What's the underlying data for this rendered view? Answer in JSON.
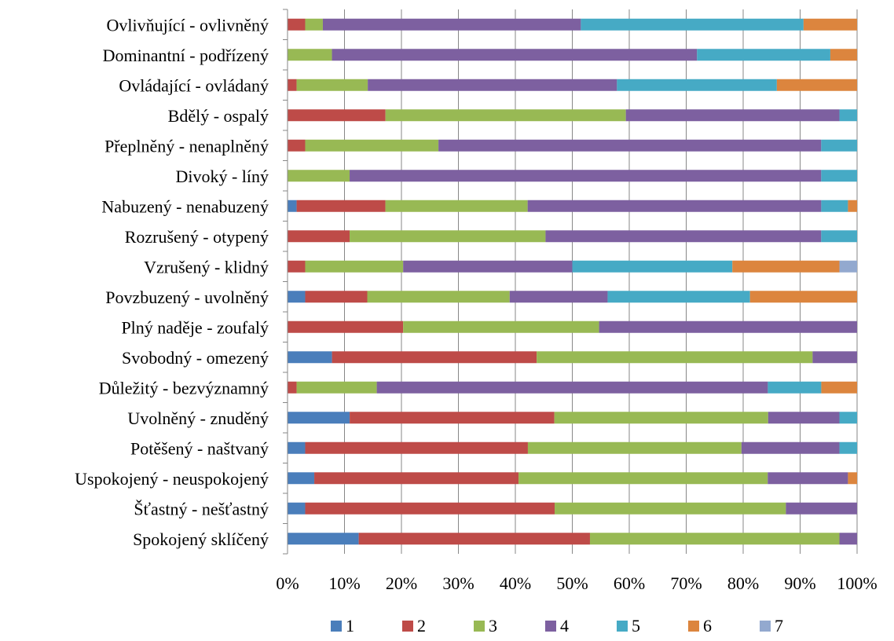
{
  "chart_data": {
    "type": "bar",
    "orientation": "horizontal",
    "stacked": "percent",
    "xlim": [
      0,
      100
    ],
    "x_ticks": [
      "0%",
      "10%",
      "20%",
      "30%",
      "40%",
      "50%",
      "60%",
      "70%",
      "80%",
      "90%",
      "100%"
    ],
    "grid": true,
    "legend_position": "bottom",
    "categories": [
      "Ovlivňující - ovlivněný",
      "Dominantní - podřízený",
      "Ovládající - ovládaný",
      "Bdělý - ospalý",
      "Přeplněný - nenaplněný",
      "Divoký - líný",
      "Nabuzený - nenabuzený",
      "Rozrušený - otypený",
      "Vzrušený - klidný",
      "Povzbuzený - uvolněný",
      "Plný naděje - zoufalý",
      "Svobodný - omezený",
      "Důležitý - bezvýznamný",
      "Uvolněný - znuděný",
      "Potěšený - naštvaný",
      "Uspokojený - neuspokojený",
      "Šťastný - nešťastný",
      "Spokojený sklíčený"
    ],
    "series": [
      {
        "name": "1",
        "color": "#4a7ebb",
        "values": [
          0,
          0,
          0,
          0,
          0,
          0,
          1.6,
          0,
          0,
          3.1,
          0,
          7.8,
          0,
          10.9,
          3.1,
          4.7,
          3.1,
          12.5
        ]
      },
      {
        "name": "2",
        "color": "#be4b48",
        "values": [
          3.1,
          0,
          1.6,
          17.2,
          3.1,
          0,
          15.6,
          10.9,
          3.1,
          10.9,
          20.3,
          35.9,
          1.6,
          35.9,
          39.1,
          35.9,
          43.8,
          40.6
        ]
      },
      {
        "name": "3",
        "color": "#98b954",
        "values": [
          3.1,
          7.8,
          12.5,
          42.2,
          23.4,
          10.9,
          25.0,
          34.4,
          17.2,
          25.0,
          34.4,
          48.4,
          14.1,
          37.5,
          37.5,
          43.8,
          40.6,
          43.8
        ]
      },
      {
        "name": "4",
        "color": "#7d60a0",
        "values": [
          45.3,
          64.1,
          43.8,
          37.5,
          67.2,
          82.8,
          51.6,
          48.4,
          29.7,
          17.2,
          45.3,
          7.8,
          68.8,
          12.5,
          17.2,
          14.1,
          12.5,
          3.1
        ]
      },
      {
        "name": "5",
        "color": "#46aac5",
        "values": [
          39.1,
          23.4,
          28.1,
          3.1,
          6.3,
          6.3,
          4.7,
          6.3,
          28.1,
          25.0,
          0,
          0,
          9.4,
          3.1,
          3.1,
          0,
          0,
          0
        ]
      },
      {
        "name": "6",
        "color": "#dc853e",
        "values": [
          9.4,
          4.7,
          14.1,
          0,
          0,
          0,
          1.6,
          0,
          18.8,
          18.8,
          0,
          0,
          6.3,
          0,
          0,
          1.6,
          0,
          0
        ]
      },
      {
        "name": "7",
        "color": "#93a9cf",
        "values": [
          0,
          0,
          0,
          0,
          0,
          0,
          0,
          0,
          3.1,
          0,
          0,
          0,
          0,
          0,
          0,
          0,
          0,
          0
        ]
      }
    ]
  }
}
